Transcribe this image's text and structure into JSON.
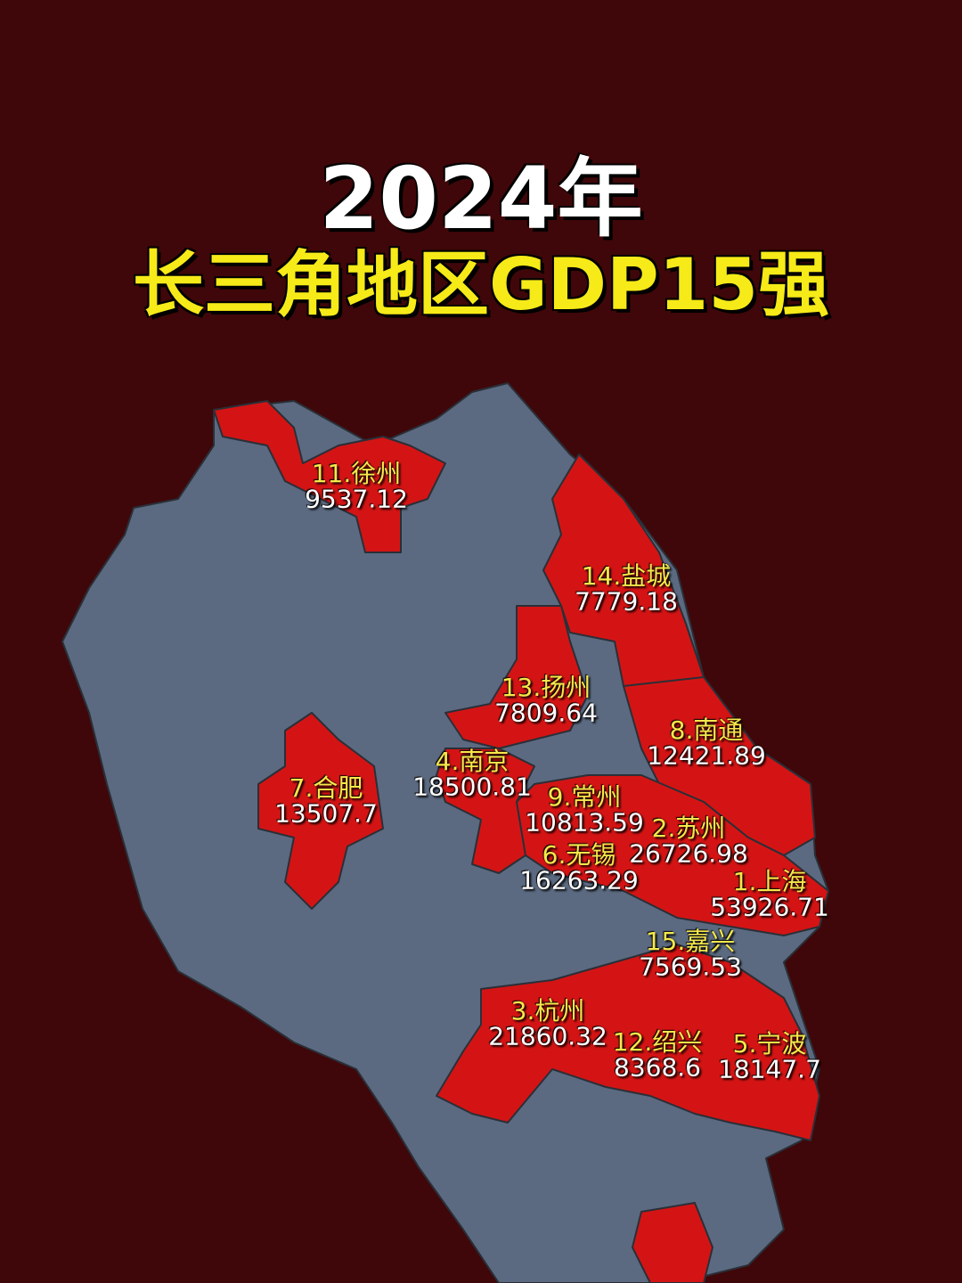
{
  "title": {
    "year": "2024年",
    "subtitle": "长三角地区GDP15强"
  },
  "cities": [
    {
      "label": "1.上海",
      "gdp": 53926.71
    },
    {
      "label": "2.苏州",
      "gdp": 26726.98
    },
    {
      "label": "3.杭州",
      "gdp": 21860.32
    },
    {
      "label": "4.南京",
      "gdp": 18500.81
    },
    {
      "label": "5.宁波",
      "gdp": 18147.7
    },
    {
      "label": "6.无锡",
      "gdp": 16263.29
    },
    {
      "label": "7.合肥",
      "gdp": 13507.7
    },
    {
      "label": "8.南通",
      "gdp": 12421.89
    },
    {
      "label": "9.常州",
      "gdp": 10813.59
    },
    {
      "label": "11.徐州",
      "gdp": 9537.12
    },
    {
      "label": "12.绍兴",
      "gdp": 8368.6
    },
    {
      "label": "13.扬州",
      "gdp": 7809.64
    },
    {
      "label": "14.盐城",
      "gdp": 7779.18
    },
    {
      "label": "15.嘉兴",
      "gdp": 7569.53
    }
  ]
}
